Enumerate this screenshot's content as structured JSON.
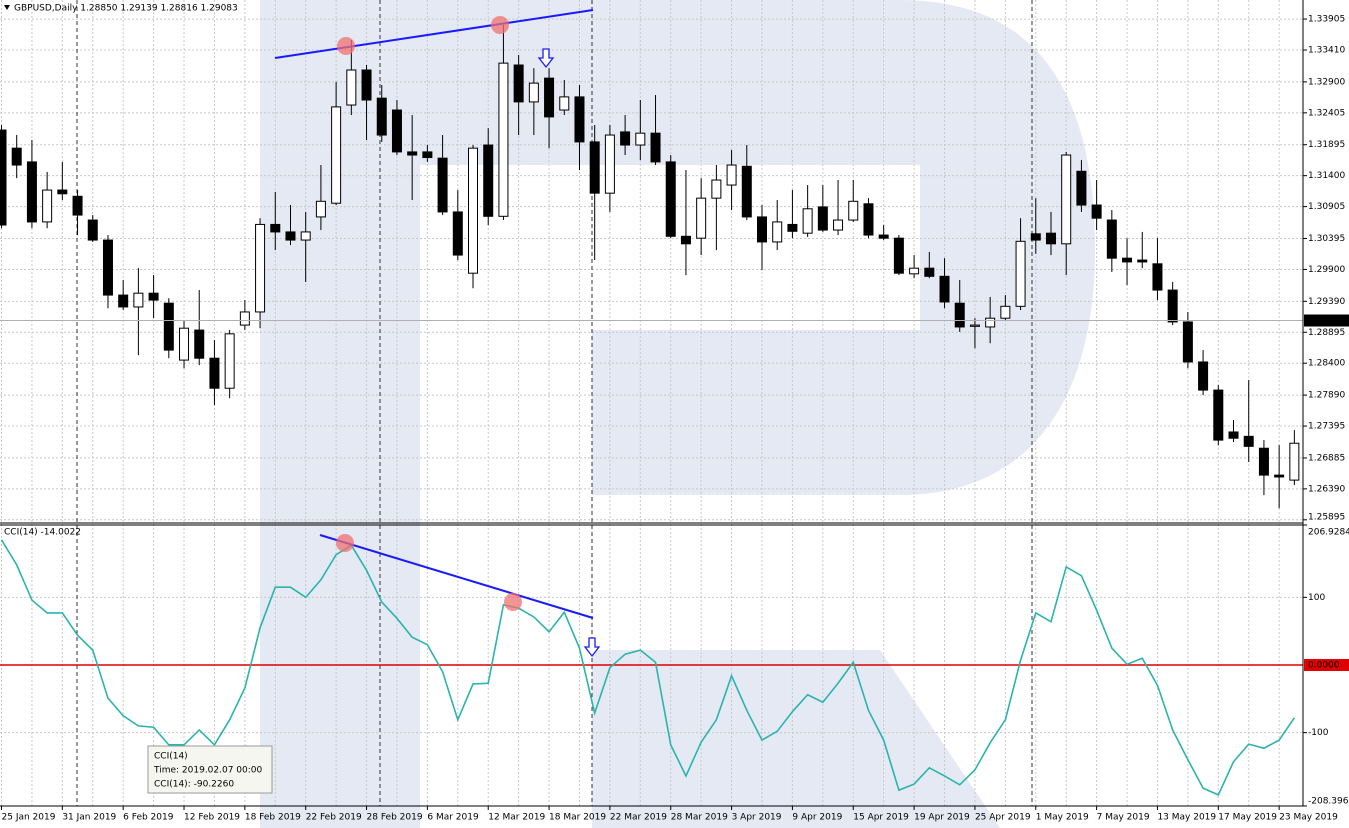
{
  "chart_data": [
    {
      "type": "candlestick",
      "title": "GBPUSD,Daily 1.28850 1.29139 1.28816 1.29083",
      "categories": [
        "25 Jan 2019",
        null,
        null,
        null,
        "31 Jan 2019",
        null,
        null,
        null,
        "6 Feb 2019",
        null,
        null,
        null,
        "12 Feb 2019",
        null,
        null,
        null,
        "18 Feb 2019",
        null,
        null,
        null,
        "22 Feb 2019",
        null,
        null,
        null,
        "28 Feb 2019",
        null,
        null,
        null,
        "6 Mar 2019",
        null,
        null,
        null,
        "12 Mar 2019",
        null,
        null,
        null,
        "18 Mar 2019",
        null,
        null,
        null,
        "22 Mar 2019",
        null,
        null,
        null,
        "28 Mar 2019",
        null,
        null,
        null,
        "3 Apr 2019",
        null,
        null,
        null,
        "9 Apr 2019",
        null,
        null,
        null,
        "15 Apr 2019",
        null,
        null,
        null,
        "19 Apr 2019",
        null,
        null,
        null,
        "25 Apr 2019",
        null,
        null,
        null,
        "1 May 2019",
        null,
        null,
        null,
        "7 May 2019",
        null,
        null,
        null,
        "13 May 2019",
        null,
        null,
        null,
        "17 May 2019",
        null,
        null,
        null,
        "23 May 2019",
        null
      ],
      "open": [
        1.3213,
        1.3184,
        1.3162,
        1.3066,
        1.3117,
        1.3107,
        1.3069,
        1.3037,
        1.2949,
        1.293,
        1.2952,
        1.2936,
        1.2845,
        1.2893,
        1.2848,
        1.28,
        1.2901,
        1.2922,
        1.3062,
        1.305,
        1.3037,
        1.3074,
        1.3096,
        1.3253,
        1.3309,
        1.3264,
        1.3245,
        1.3178,
        1.3178,
        1.3168,
        1.3082,
        1.2984,
        1.3189,
        1.3075,
        1.3317,
        1.3258,
        1.3296,
        1.3245,
        1.3266,
        1.3194,
        1.3112,
        1.321,
        1.3189,
        1.3208,
        1.3162,
        1.3043,
        1.304,
        1.3104,
        1.3125,
        1.3155,
        1.3074,
        1.3034,
        1.3062,
        1.3048,
        1.309,
        1.3053,
        1.3069,
        1.3095,
        1.3045,
        1.304,
        1.2983,
        1.2992,
        1.2979,
        1.2936,
        1.2899,
        1.2898,
        1.2912,
        1.2931,
        1.3047,
        1.3048,
        1.3031,
        1.3147,
        1.3093,
        1.3069,
        1.3008,
        1.3005,
        1.2999,
        1.2957,
        1.2906,
        1.2842,
        1.2797,
        1.273,
        1.2723,
        1.2704,
        1.2661,
        1.2653
      ],
      "high": [
        1.3221,
        1.3205,
        1.3197,
        1.3146,
        1.3162,
        1.3117,
        1.3077,
        1.3045,
        1.2973,
        1.2992,
        1.2981,
        1.2944,
        1.2909,
        1.2957,
        1.2877,
        1.2893,
        1.2941,
        1.3072,
        1.3114,
        1.3093,
        1.3082,
        1.3157,
        1.329,
        1.3357,
        1.3317,
        1.3285,
        1.3261,
        1.3237,
        1.3189,
        1.3205,
        1.3117,
        1.3189,
        1.3216,
        1.3381,
        1.3333,
        1.3312,
        1.3312,
        1.3293,
        1.3285,
        1.3221,
        1.3221,
        1.3237,
        1.3261,
        1.3269,
        1.3173,
        1.3149,
        1.3136,
        1.3157,
        1.3181,
        1.3189,
        1.3093,
        1.3101,
        1.3117,
        1.3125,
        1.3125,
        1.3133,
        1.3133,
        1.3104,
        1.3061,
        1.3045,
        1.3013,
        1.3018,
        1.3008,
        1.2973,
        1.2912,
        1.2946,
        1.2949,
        1.3072,
        1.3104,
        1.3082,
        1.3178,
        1.3165,
        1.3133,
        1.3085,
        1.304,
        1.305,
        1.304,
        1.297,
        1.2922,
        1.2861,
        1.2805,
        1.2749,
        1.2813,
        1.2717,
        1.2709,
        1.2733
      ],
      "low": [
        1.3056,
        1.3136,
        1.3056,
        1.3056,
        1.3101,
        1.3045,
        1.3034,
        1.2928,
        1.2925,
        1.2853,
        1.2912,
        1.2848,
        1.2832,
        1.2837,
        1.2773,
        1.2784,
        1.2893,
        1.2896,
        1.3021,
        1.3029,
        1.297,
        1.3053,
        1.3093,
        1.3237,
        1.3197,
        1.3194,
        1.3173,
        1.3101,
        1.3162,
        1.3077,
        1.3005,
        1.296,
        1.3061,
        1.3069,
        1.3205,
        1.3205,
        1.3184,
        1.3237,
        1.3149,
        1.3005,
        1.3082,
        1.3173,
        1.3165,
        1.3157,
        1.304,
        1.2981,
        1.3013,
        1.3021,
        1.3085,
        1.3069,
        1.2989,
        1.3021,
        1.304,
        1.3042,
        1.305,
        1.3045,
        1.3066,
        1.304,
        1.3037,
        1.2981,
        1.2976,
        1.2976,
        1.2928,
        1.289,
        1.2864,
        1.2872,
        1.2909,
        1.2925,
        1.3015,
        1.3013,
        1.2981,
        1.3082,
        1.3053,
        1.2986,
        1.2965,
        1.2992,
        1.2941,
        1.2901,
        1.2832,
        1.2789,
        1.2709,
        1.2714,
        1.2682,
        1.2629,
        1.2608,
        1.2645
      ],
      "close": [
        1.3061,
        1.3157,
        1.3066,
        1.3117,
        1.3111,
        1.3077,
        1.3037,
        1.2949,
        1.293,
        1.2952,
        1.2941,
        1.2861,
        1.2896,
        1.2848,
        1.28,
        1.2887,
        1.2922,
        1.3062,
        1.305,
        1.3037,
        1.305,
        1.3099,
        1.325,
        1.3309,
        1.3261,
        1.3205,
        1.3178,
        1.3173,
        1.3169,
        1.3082,
        1.3013,
        1.3184,
        1.3075,
        1.332,
        1.3258,
        1.3288,
        1.3234,
        1.3266,
        1.3194,
        1.3112,
        1.3205,
        1.3189,
        1.3208,
        1.3162,
        1.3043,
        1.3031,
        1.3104,
        1.3133,
        1.3157,
        1.3074,
        1.3034,
        1.3066,
        1.3051,
        1.3087,
        1.3053,
        1.3069,
        1.3099,
        1.3045,
        1.304,
        1.2984,
        1.2992,
        1.2979,
        1.2938,
        1.2898,
        1.2901,
        1.2912,
        1.2931,
        1.3035,
        1.3037,
        1.3031,
        1.3173,
        1.3093,
        1.3072,
        1.3008,
        1.3002,
        1.3002,
        1.2957,
        1.2906,
        1.2842,
        1.2797,
        1.2717,
        1.272,
        1.2707,
        1.2661,
        1.2658,
        1.2712
      ],
      "up_color": "#ffffff",
      "down_color": "#000000",
      "ylim": [
        1.2586,
        1.3421
      ],
      "yticks": [
        1.33905,
        {
          "value": 1.3341,
          "label": "1.33410"
        },
        {
          "value": 1.329,
          "label": "1.32900"
        },
        1.32405,
        1.31895,
        {
          "value": 1.314,
          "label": "1.31400"
        },
        1.30905,
        1.30395,
        {
          "value": 1.299,
          "label": "1.29900"
        },
        {
          "value": 1.2939,
          "label": "1.29390"
        },
        1.28895,
        {
          "value": 1.284,
          "label": "1.28400"
        },
        {
          "value": 1.2789,
          "label": "1.27890"
        },
        1.27395,
        1.26885,
        {
          "value": 1.2639,
          "label": "1.26390"
        },
        1.25895
      ],
      "last_price": 1.29083,
      "grid": true
    },
    {
      "type": "line",
      "title": "CCI(14) -14.0022",
      "series": [
        {
          "color": "#2bb3ad",
          "values": [
            185,
            148,
            96,
            77,
            77,
            44,
            22,
            -49,
            -75,
            -90,
            -92,
            -118,
            -118,
            -96,
            -118,
            -81,
            -34,
            55,
            115,
            115,
            100,
            126,
            163,
            177,
            140,
            93,
            69,
            41,
            30,
            -10,
            -81,
            -28,
            -27,
            89,
            84,
            71,
            49,
            78,
            25,
            -71,
            -4,
            16,
            22,
            4,
            -118,
            -164,
            -114,
            -81,
            -16,
            -67,
            -111,
            -98,
            -69,
            -44,
            -55,
            -27,
            4,
            -67,
            -111,
            -185,
            -176,
            -152,
            -164,
            -177,
            -155,
            -115,
            -81,
            7,
            77,
            64,
            145,
            132,
            81,
            25,
            1,
            10,
            -30,
            -96,
            -140,
            -182,
            -192,
            -143,
            -117,
            -123,
            -111,
            -78
          ]
        }
      ],
      "ylim": [
        -208.3968,
        206.9284
      ],
      "yticks": [
        206.9284,
        100,
        -100,
        -208.3968
      ],
      "levels": [
        {
          "value": 0,
          "label": "0.0000",
          "color": "#e00000"
        }
      ],
      "tooltip": [
        "CCI(14)",
        "Time: 2019.02.07 00:00",
        "CCI(14): -90.2260"
      ],
      "grid": true
    }
  ]
}
